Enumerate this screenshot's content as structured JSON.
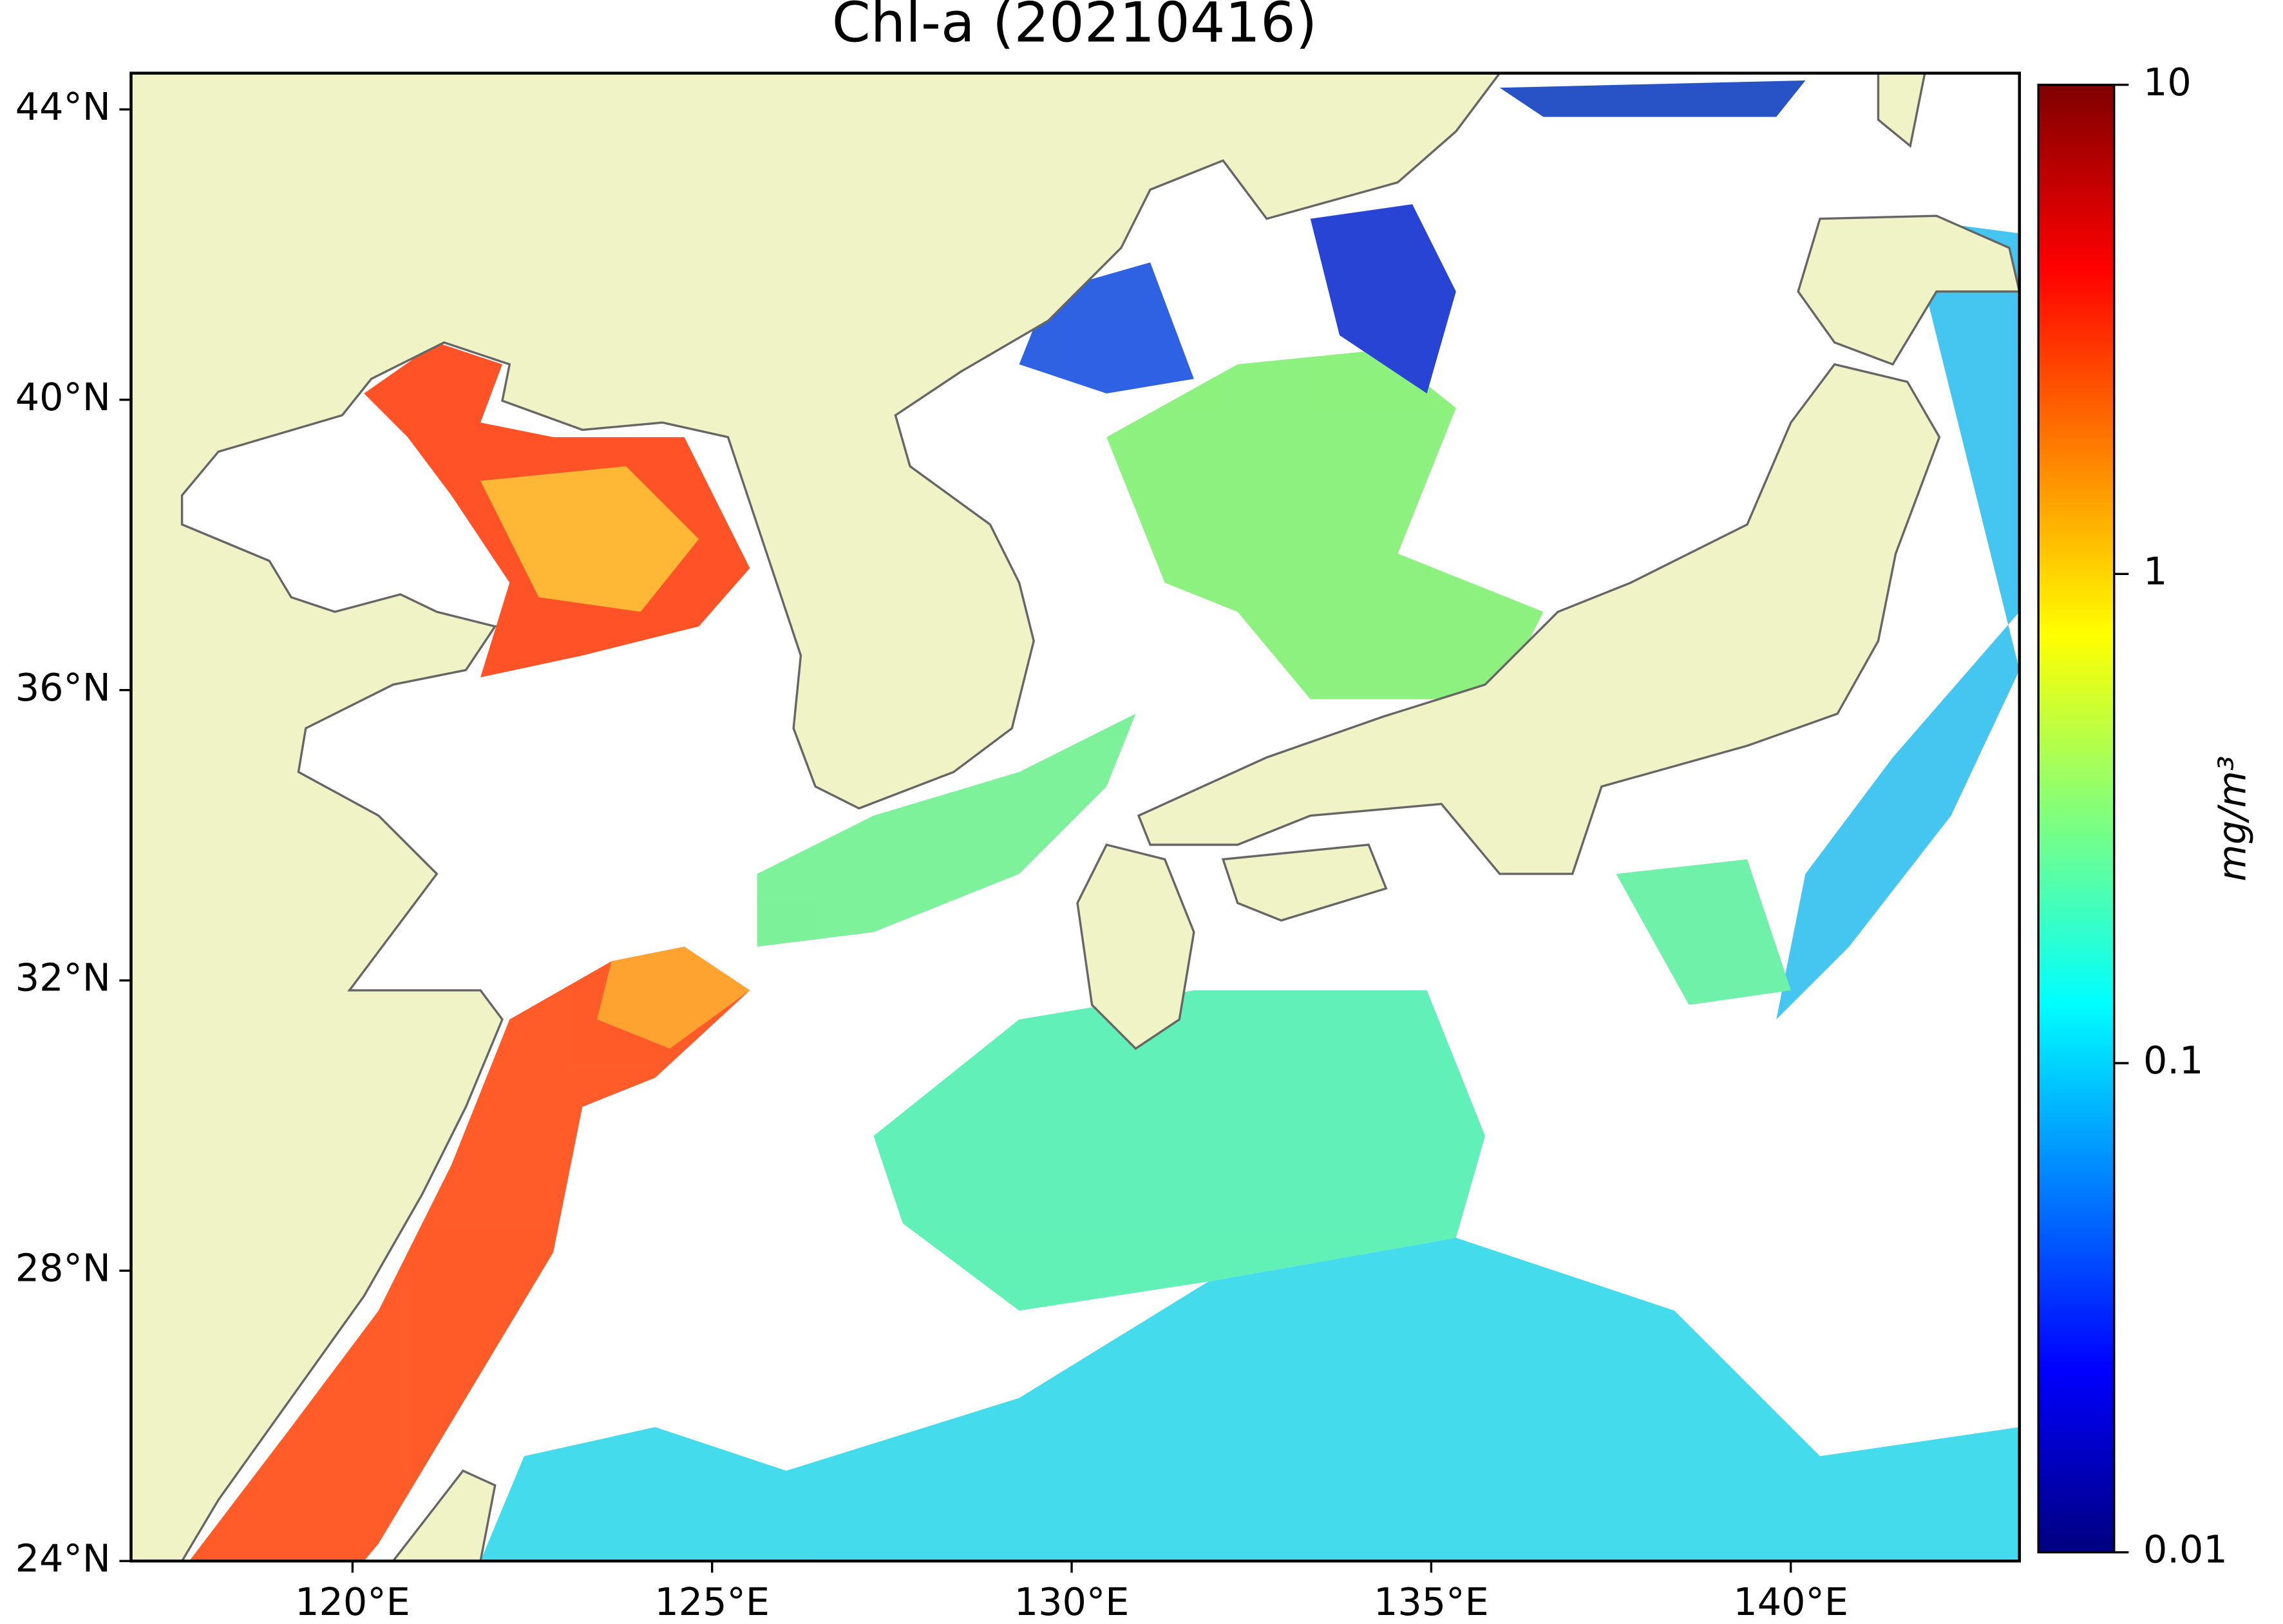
{
  "chart_data": {
    "type": "map",
    "title": "Chl-a (20210416)",
    "xlim": [
      116.92,
      143.18
    ],
    "ylim": [
      24,
      44.5
    ],
    "xticks": [
      {
        "value": 120,
        "label": "120°E"
      },
      {
        "value": 125,
        "label": "125°E"
      },
      {
        "value": 130,
        "label": "130°E"
      },
      {
        "value": 135,
        "label": "135°E"
      },
      {
        "value": 140,
        "label": "140°E"
      }
    ],
    "yticks": [
      {
        "value": 24,
        "label": "24°N"
      },
      {
        "value": 28,
        "label": "28°N"
      },
      {
        "value": 32,
        "label": "32°N"
      },
      {
        "value": 36,
        "label": "36°N"
      },
      {
        "value": 40,
        "label": "40°N"
      },
      {
        "value": 44,
        "label": "44°N"
      }
    ],
    "colorbar": {
      "label": "mg/m³",
      "scale": "log",
      "lim": [
        0.01,
        10
      ],
      "ticks": [
        0.01,
        0.1,
        1,
        10
      ],
      "colors": [
        "#00007f",
        "#0000ff",
        "#007fff",
        "#00ffff",
        "#7fff7f",
        "#ffff00",
        "#ff7f00",
        "#ff0000",
        "#7f0000"
      ]
    }
  }
}
